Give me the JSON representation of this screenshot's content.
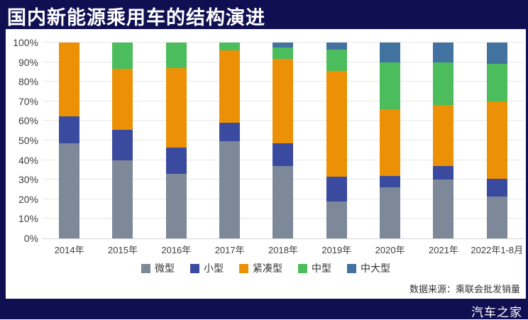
{
  "page": {
    "title": "国内新能源乘用车的结构演进",
    "source_note": "数据来源：乘联会批发销量",
    "watermark": "汽车之家"
  },
  "colors": {
    "background_navy": "#0F0F52",
    "card_white": "#FFFFFF",
    "gridline": "#E7E7E7",
    "axis_text": "#404040"
  },
  "chart_data": {
    "type": "bar",
    "stacked": true,
    "title": "国内新能源乘用车的结构演进",
    "xlabel": "",
    "ylabel": "",
    "ylim": [
      0,
      100
    ],
    "ytick_labels": [
      "0%",
      "10%",
      "20%",
      "30%",
      "40%",
      "50%",
      "60%",
      "70%",
      "80%",
      "90%",
      "100%"
    ],
    "grid": true,
    "legend_position": "bottom",
    "categories": [
      "2014年",
      "2015年",
      "2016年",
      "2017年",
      "2018年",
      "2019年",
      "2020年",
      "2021年",
      "2022年1-8月"
    ],
    "series": [
      {
        "name": "微型",
        "color": "#7D8899",
        "values": [
          48.5,
          40.0,
          33.0,
          49.5,
          37.0,
          19.0,
          26.0,
          30.0,
          21.5
        ]
      },
      {
        "name": "小型",
        "color": "#3A4A9F",
        "values": [
          14.0,
          15.5,
          13.5,
          9.5,
          11.5,
          12.5,
          6.0,
          7.0,
          9.0
        ]
      },
      {
        "name": "紧凑型",
        "color": "#EC9106",
        "values": [
          37.5,
          31.0,
          40.5,
          37.0,
          43.0,
          54.0,
          34.0,
          31.0,
          39.5
        ]
      },
      {
        "name": "中型",
        "color": "#4CBD5C",
        "values": [
          0.0,
          13.5,
          13.0,
          4.0,
          6.0,
          11.0,
          24.0,
          22.0,
          19.0
        ]
      },
      {
        "name": "中大型",
        "color": "#4172A0",
        "values": [
          0.0,
          0.0,
          0.0,
          0.0,
          2.5,
          3.5,
          10.0,
          10.0,
          11.0
        ]
      }
    ]
  }
}
